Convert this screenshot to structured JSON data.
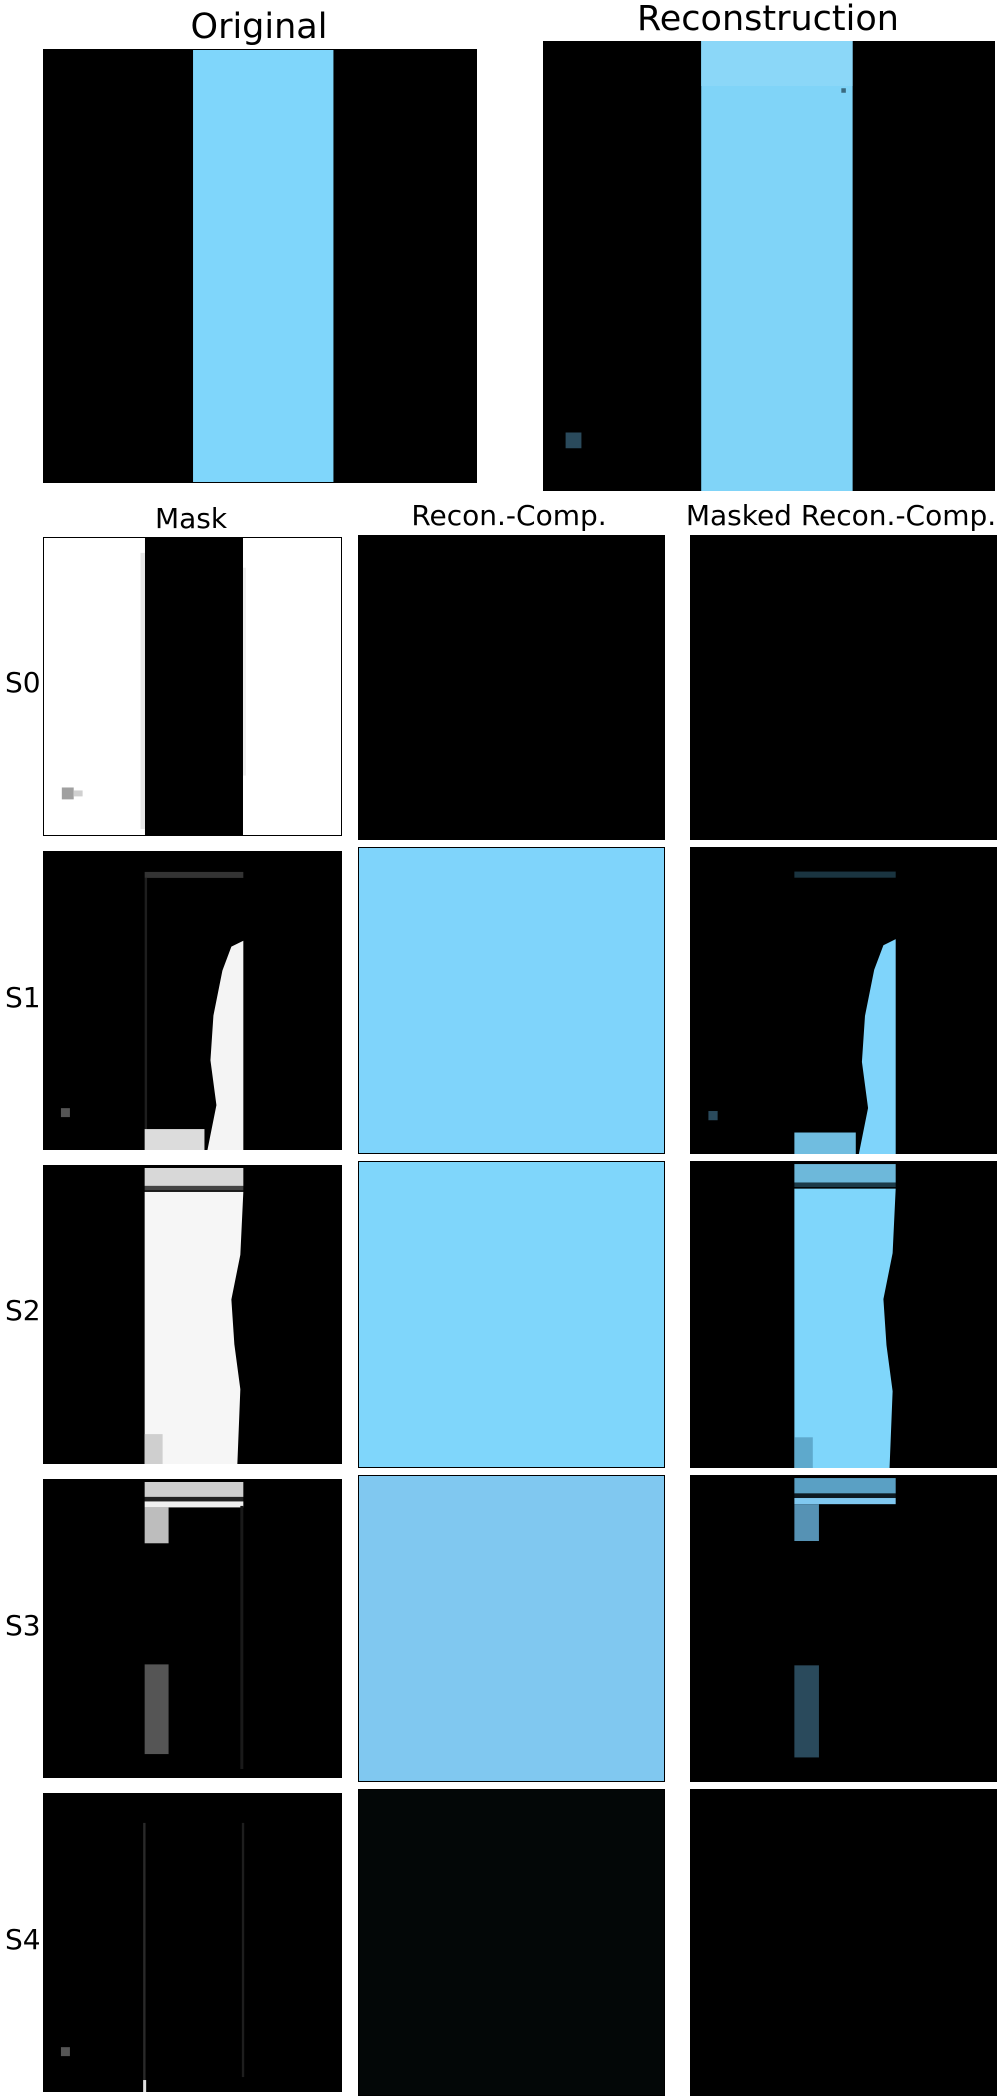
{
  "titles": {
    "original": "Original",
    "reconstruction": "Reconstruction"
  },
  "columns": {
    "mask": "Mask",
    "recon_comp": "Recon.-Comp.",
    "masked_recon_comp": "Masked Recon.-Comp."
  },
  "rows": [
    {
      "label": "S0"
    },
    {
      "label": "S1"
    },
    {
      "label": "S2"
    },
    {
      "label": "S3"
    },
    {
      "label": "S4"
    }
  ],
  "colors": {
    "background": "#000000",
    "light_blue": "#7fd6fb",
    "medium_blue": "#80c8f0",
    "white": "#ffffff"
  }
}
